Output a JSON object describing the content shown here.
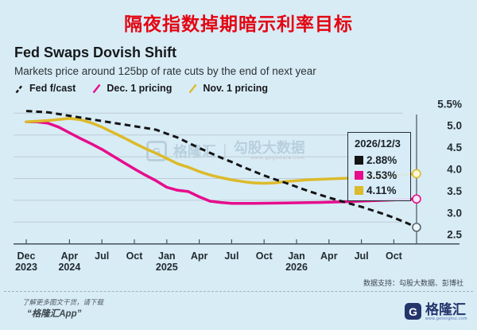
{
  "page": {
    "title": "隔夜指数掉期暗示利率目标",
    "title_color": "#e30613",
    "background": "#d8ecf6"
  },
  "chart": {
    "title": "Fed Swaps Dovish Shift",
    "subtitle": "Markets price around 125bp of rate cuts by the end of next year",
    "legend": [
      {
        "label": "Fed f/cast",
        "color": "#141414",
        "dashed": true
      },
      {
        "label": "Dec. 1 pricing",
        "color": "#e60d8c",
        "dashed": false
      },
      {
        "label": "Nov. 1 pricing",
        "color": "#dcba2a",
        "dashed": false
      }
    ]
  },
  "chart_data": {
    "type": "line",
    "title": "Fed Swaps Dovish Shift",
    "x_unit": "months after Dec 2023",
    "ylim": [
      2.5,
      5.5
    ],
    "grid": true,
    "legend_position": "top-left",
    "y_ticks": [
      "5.5%",
      "5.0",
      "4.5",
      "4.0",
      "3.5",
      "3.0",
      "2.5"
    ],
    "y_tick_values": [
      5.5,
      5.0,
      4.5,
      4.0,
      3.5,
      3.0,
      2.5
    ],
    "x_tick_months": [
      0,
      4,
      7,
      10,
      13,
      16,
      19,
      22,
      25,
      28,
      31,
      34
    ],
    "x_tick_labels": [
      [
        "Dec",
        "2023"
      ],
      [
        "Apr",
        "2024"
      ],
      [
        "Jul",
        ""
      ],
      [
        "Oct",
        ""
      ],
      [
        "Jan",
        "2025"
      ],
      [
        "Apr",
        ""
      ],
      [
        "Jul",
        ""
      ],
      [
        "Oct",
        ""
      ],
      [
        "Jan",
        "2026"
      ],
      [
        "Apr",
        ""
      ],
      [
        "Jul",
        ""
      ],
      [
        "Oct",
        ""
      ]
    ],
    "today_month": 36.1,
    "series": [
      {
        "name": "Dec. 1 pricing",
        "color": "#e60d8c",
        "dashed": false,
        "marker_stroke": "#e60d8c",
        "marker_fill": "#fbeaf4",
        "points": [
          [
            0,
            5.3
          ],
          [
            1,
            5.3
          ],
          [
            2,
            5.27
          ],
          [
            3,
            5.18
          ],
          [
            4,
            5.05
          ],
          [
            5,
            4.92
          ],
          [
            6,
            4.8
          ],
          [
            7,
            4.67
          ],
          [
            8,
            4.52
          ],
          [
            9,
            4.37
          ],
          [
            10,
            4.22
          ],
          [
            11,
            4.08
          ],
          [
            12,
            3.95
          ],
          [
            13,
            3.8
          ],
          [
            14,
            3.73
          ],
          [
            15,
            3.7
          ],
          [
            16,
            3.58
          ],
          [
            17,
            3.48
          ],
          [
            18,
            3.45
          ],
          [
            19,
            3.43
          ],
          [
            21,
            3.43
          ],
          [
            24,
            3.44
          ],
          [
            27,
            3.45
          ],
          [
            30,
            3.47
          ],
          [
            32,
            3.49
          ],
          [
            34,
            3.51
          ],
          [
            36.1,
            3.53
          ]
        ]
      },
      {
        "name": "Nov. 1 pricing",
        "color": "#dcba2a",
        "dashed": false,
        "marker_stroke": "#dcba2a",
        "marker_fill": "#fbf6da",
        "points": [
          [
            0,
            5.3
          ],
          [
            2,
            5.33
          ],
          [
            4,
            5.38
          ],
          [
            5,
            5.35
          ],
          [
            6,
            5.28
          ],
          [
            7,
            5.18
          ],
          [
            8,
            5.06
          ],
          [
            9,
            4.94
          ],
          [
            10,
            4.81
          ],
          [
            11,
            4.69
          ],
          [
            12,
            4.58
          ],
          [
            13,
            4.46
          ],
          [
            14,
            4.34
          ],
          [
            15,
            4.26
          ],
          [
            16,
            4.16
          ],
          [
            17,
            4.08
          ],
          [
            18,
            4.02
          ],
          [
            19,
            3.97
          ],
          [
            20,
            3.93
          ],
          [
            21,
            3.9
          ],
          [
            22,
            3.89
          ],
          [
            23,
            3.9
          ],
          [
            24,
            3.93
          ],
          [
            25,
            3.95
          ],
          [
            26,
            3.97
          ],
          [
            28,
            3.99
          ],
          [
            30,
            4.01
          ],
          [
            32,
            4.03
          ],
          [
            34,
            4.07
          ],
          [
            35,
            4.09
          ],
          [
            36.1,
            4.11
          ]
        ]
      },
      {
        "name": "Fed f/cast",
        "color": "#141414",
        "dashed": true,
        "marker_stroke": "#5b666d",
        "marker_fill": "#eef6fa",
        "points": [
          [
            0,
            5.55
          ],
          [
            2,
            5.52
          ],
          [
            4,
            5.44
          ],
          [
            6,
            5.36
          ],
          [
            8,
            5.28
          ],
          [
            10,
            5.2
          ],
          [
            12,
            5.12
          ],
          [
            13,
            5.03
          ],
          [
            14,
            4.94
          ],
          [
            15,
            4.82
          ],
          [
            16,
            4.7
          ],
          [
            17,
            4.59
          ],
          [
            18,
            4.48
          ],
          [
            19,
            4.38
          ],
          [
            20,
            4.27
          ],
          [
            21,
            4.17
          ],
          [
            22,
            4.07
          ],
          [
            23,
            3.98
          ],
          [
            24,
            3.9
          ],
          [
            25,
            3.81
          ],
          [
            26,
            3.72
          ],
          [
            27,
            3.64
          ],
          [
            28,
            3.56
          ],
          [
            29,
            3.49
          ],
          [
            30,
            3.42
          ],
          [
            31,
            3.35
          ],
          [
            32,
            3.27
          ],
          [
            33,
            3.19
          ],
          [
            34,
            3.1
          ],
          [
            35,
            3.0
          ],
          [
            36.1,
            2.88
          ]
        ]
      }
    ]
  },
  "callout": {
    "title": "2026/12/3",
    "rows": [
      {
        "color": "#141414",
        "value": "2.88%"
      },
      {
        "color": "#e60d8c",
        "value": "3.53%"
      },
      {
        "color": "#dcba2a",
        "value": "4.11%"
      }
    ]
  },
  "watermark": {
    "glyph": "G",
    "brand": "格隆汇",
    "separator": "|",
    "name": "勾股大数据",
    "url": "www.gogudata.com"
  },
  "footer": {
    "source": "数据支持：勾股大数据、彭博社",
    "promo_line1": "了解更多图文干货，请下载",
    "promo_line2": "“格隆汇App”",
    "brand": {
      "glyph": "G",
      "name": "格隆汇",
      "url": "www.gelonghui.com"
    }
  }
}
